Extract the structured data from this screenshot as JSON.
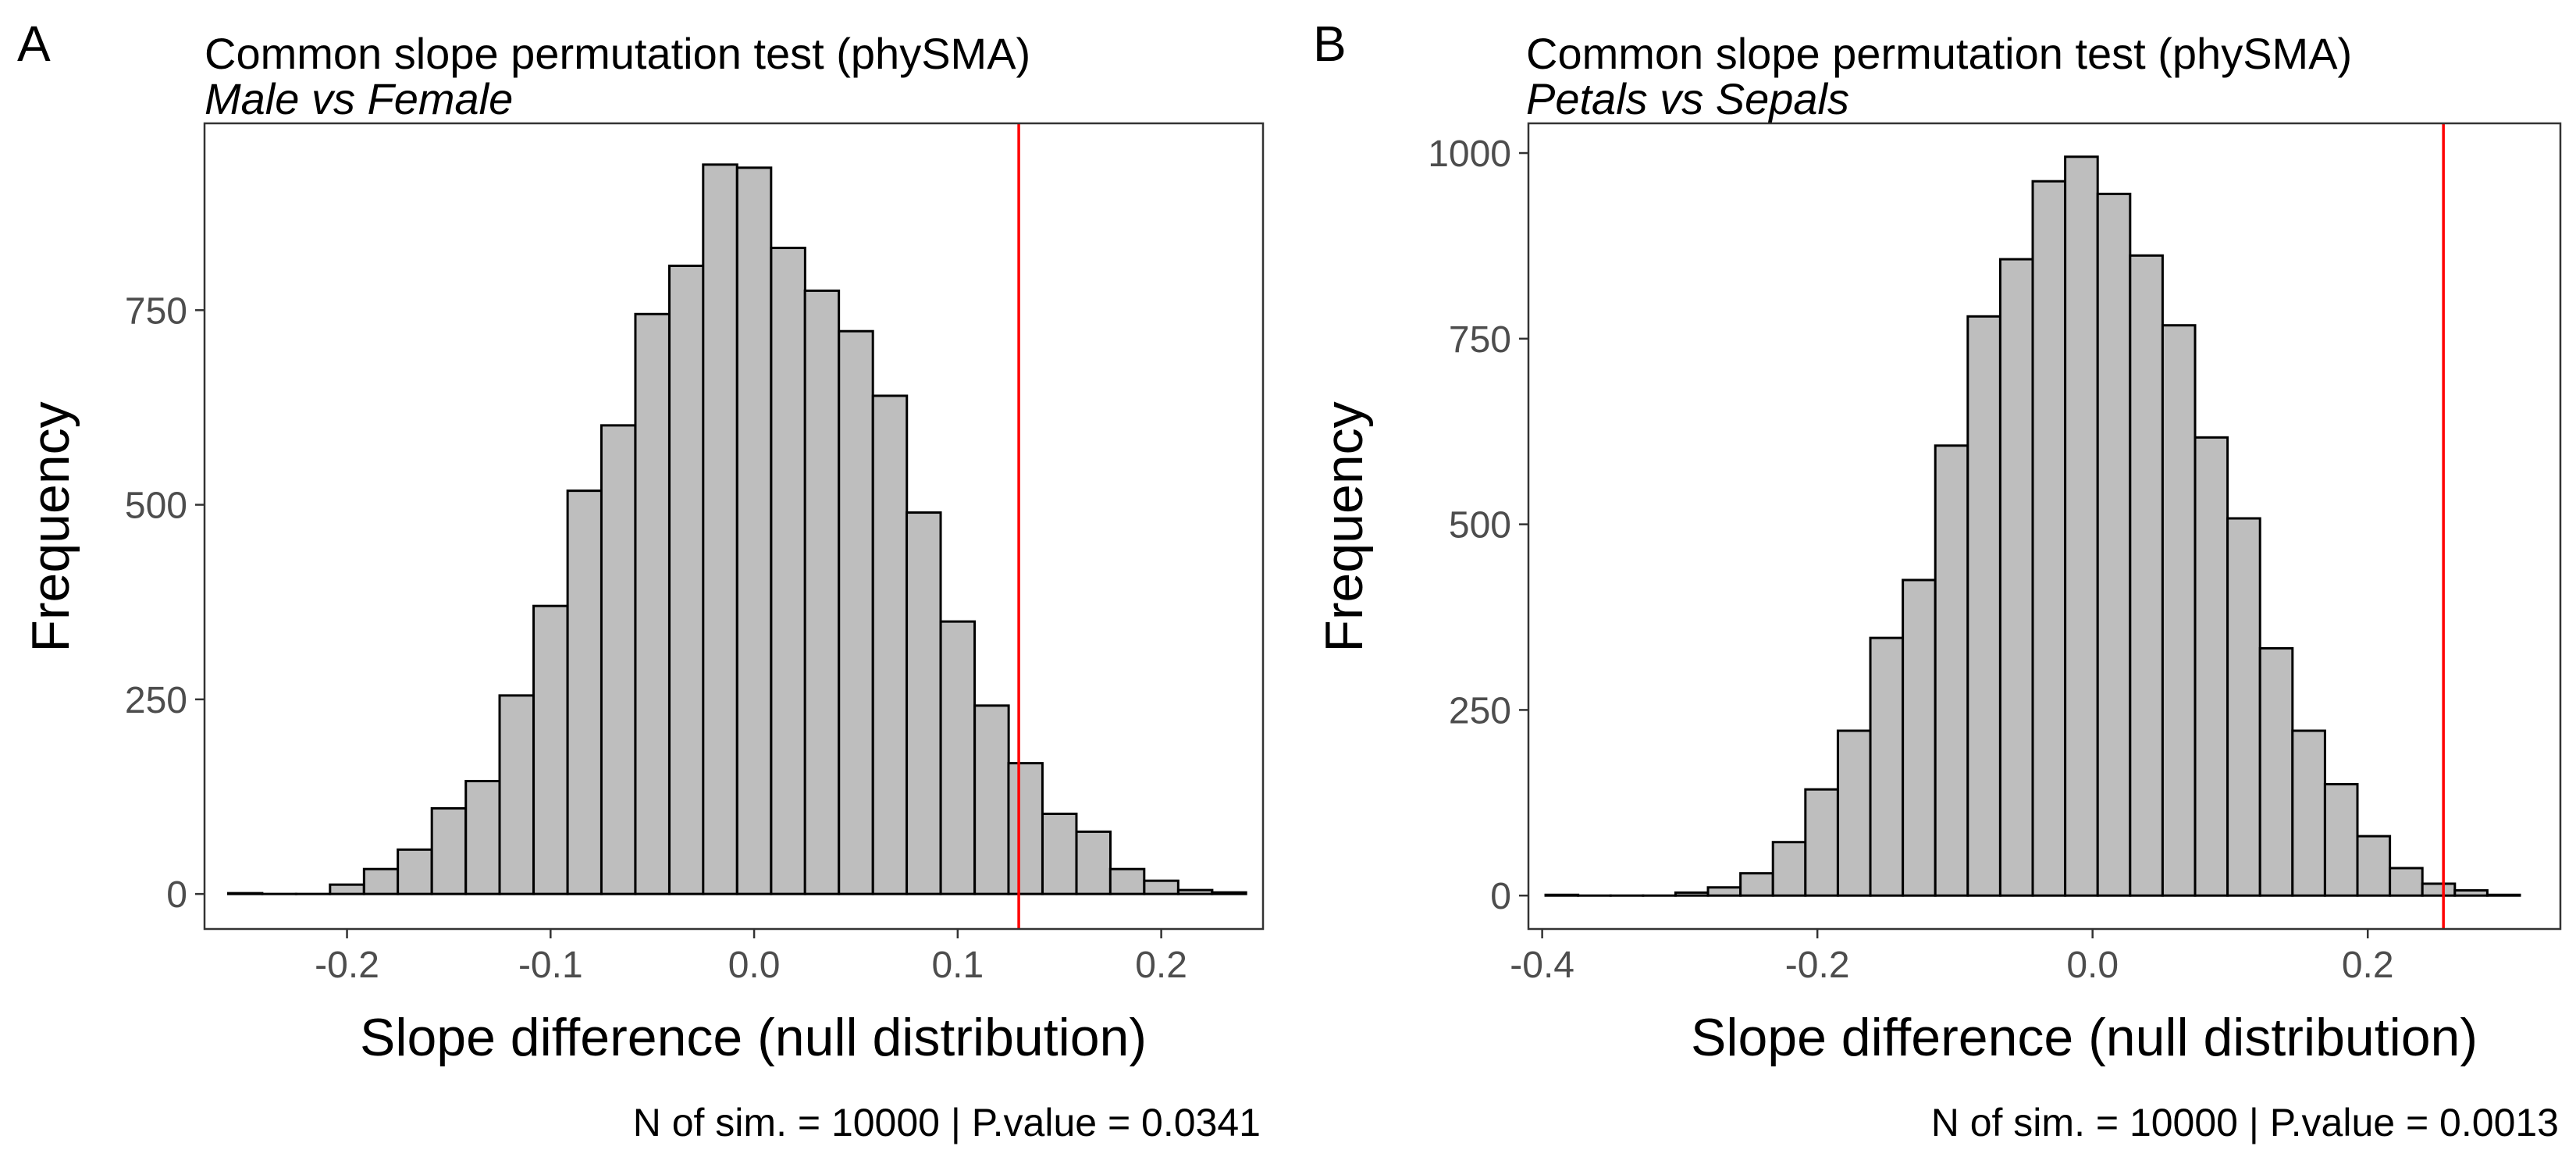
{
  "chart_data": [
    {
      "type": "bar",
      "panel_tag": "A",
      "title": "Common slope permutation test (phySMA)",
      "subtitle": "Male vs Female",
      "xlabel": "Slope difference (null distribution)",
      "ylabel": "Frequency",
      "caption": "N of sim. =  10000 | P.value =  0.0341",
      "xlim": [
        -0.27,
        0.25
      ],
      "ylim": [
        -45,
        990
      ],
      "xticks": [
        -0.2,
        -0.1,
        0.0,
        0.1,
        0.2
      ],
      "xtick_labels": [
        "-0.2",
        "-0.1",
        "0.0",
        "0.1",
        "0.2"
      ],
      "yticks": [
        0,
        250,
        500,
        750
      ],
      "ytick_labels": [
        "0",
        "250",
        "500",
        "750"
      ],
      "bin_width": 0.01667,
      "bin_centers": [
        -0.25,
        -0.2333,
        -0.2167,
        -0.2,
        -0.1833,
        -0.1667,
        -0.15,
        -0.1333,
        -0.1167,
        -0.1,
        -0.0833,
        -0.0667,
        -0.05,
        -0.0333,
        -0.0167,
        0.0,
        0.0167,
        0.0333,
        0.05,
        0.0667,
        0.0833,
        0.1,
        0.1167,
        0.1333,
        0.15,
        0.1667,
        0.1833,
        0.2,
        0.2167,
        0.2333
      ],
      "values": [
        1,
        0,
        0,
        12,
        32,
        57,
        110,
        145,
        255,
        370,
        518,
        602,
        745,
        807,
        937,
        933,
        830,
        775,
        723,
        640,
        490,
        350,
        242,
        168,
        103,
        80,
        32,
        17,
        5,
        2
      ],
      "observed_value": 0.13,
      "observed_line_color": "#ff0000",
      "bar_fill": "#bebebe",
      "grid": false
    },
    {
      "type": "bar",
      "panel_tag": "B",
      "title": "Common slope permutation test (phySMA)",
      "subtitle": "Petals vs Sepals",
      "xlabel": "Slope difference (null distribution)",
      "ylabel": "Frequency",
      "caption": "N of sim. =  10000 | P.value =  0.0013",
      "xlim": [
        -0.41,
        0.34
      ],
      "ylim": [
        -45,
        1040
      ],
      "xticks": [
        -0.4,
        -0.2,
        0.0,
        0.2
      ],
      "xtick_labels": [
        "-0.4",
        "-0.2",
        "0.0",
        "0.2"
      ],
      "yticks": [
        0,
        250,
        500,
        750,
        1000
      ],
      "ytick_labels": [
        "0",
        "250",
        "500",
        "750",
        "1000"
      ],
      "bin_width": 0.0236,
      "bin_centers": [
        -0.3857,
        -0.3621,
        -0.3385,
        -0.3149,
        -0.2913,
        -0.2677,
        -0.2441,
        -0.2205,
        -0.1969,
        -0.1733,
        -0.1497,
        -0.1261,
        -0.1025,
        -0.0789,
        -0.0553,
        -0.0317,
        -0.0081,
        0.0155,
        0.0391,
        0.0627,
        0.0863,
        0.1099,
        0.1335,
        0.1571,
        0.1807,
        0.2043,
        0.2279,
        0.2515,
        0.2751,
        0.2987
      ],
      "values": [
        1,
        0,
        0,
        0,
        4,
        11,
        30,
        72,
        143,
        222,
        347,
        425,
        606,
        780,
        857,
        962,
        995,
        945,
        862,
        768,
        617,
        508,
        333,
        222,
        150,
        80,
        37,
        16,
        7,
        1
      ],
      "observed_value": 0.255,
      "observed_line_color": "#ff0000",
      "bar_fill": "#bebebe",
      "grid": false
    }
  ]
}
